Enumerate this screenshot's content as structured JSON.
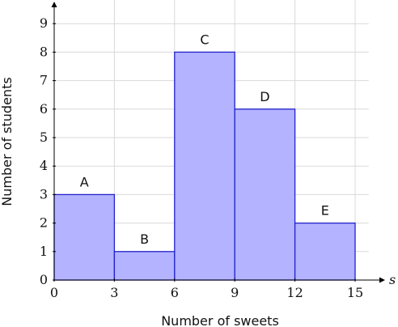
{
  "chart_data": {
    "type": "bar",
    "bins": [
      {
        "label": "A",
        "start": 0,
        "end": 3,
        "value": 3
      },
      {
        "label": "B",
        "start": 3,
        "end": 6,
        "value": 1
      },
      {
        "label": "C",
        "start": 6,
        "end": 9,
        "value": 8
      },
      {
        "label": "D",
        "start": 9,
        "end": 12,
        "value": 6
      },
      {
        "label": "E",
        "start": 12,
        "end": 15,
        "value": 2
      }
    ],
    "xlabel": "Number of sweets",
    "ylabel": "Number of students",
    "x_variable": "s",
    "xlim": [
      0,
      16
    ],
    "ylim": [
      0,
      10
    ],
    "xticks": [
      0,
      3,
      6,
      9,
      12,
      15
    ],
    "yticks": [
      0,
      1,
      2,
      3,
      4,
      5,
      6,
      7,
      8,
      9
    ],
    "grid": true,
    "colors": {
      "bar_fill": "#b3b3ff",
      "bar_stroke": "#2222cc"
    }
  }
}
